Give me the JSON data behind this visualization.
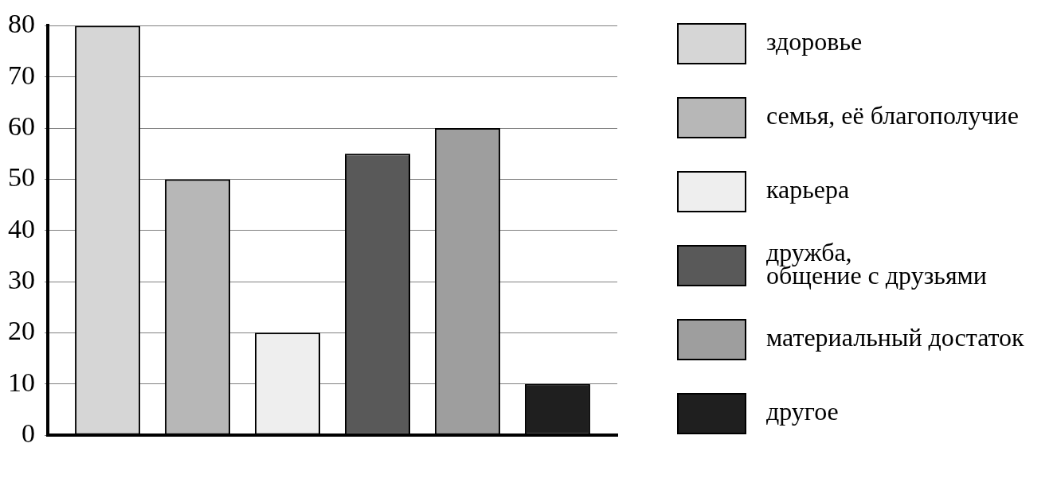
{
  "chart_data": {
    "type": "bar",
    "categories": [
      null
    ],
    "series": [
      {
        "name": "здоровье",
        "color": "#d6d6d6",
        "values": [
          80
        ]
      },
      {
        "name": "семья, её благополучие",
        "color": "#b7b7b7",
        "values": [
          50
        ]
      },
      {
        "name": "карьера",
        "color": "#eeeeee",
        "values": [
          20
        ]
      },
      {
        "name": "дружба, общение с друзьями",
        "color": "#595959",
        "values": [
          55
        ]
      },
      {
        "name": "материальный достаток",
        "color": "#9e9e9e",
        "values": [
          60
        ]
      },
      {
        "name": "другое",
        "color": "#1f1f1f",
        "values": [
          10
        ]
      }
    ],
    "ylim": [
      0,
      80
    ],
    "yticks": [
      0,
      10,
      20,
      30,
      40,
      50,
      60,
      70,
      80
    ],
    "grid": "y",
    "legend": "right",
    "tick_labels": "y"
  }
}
